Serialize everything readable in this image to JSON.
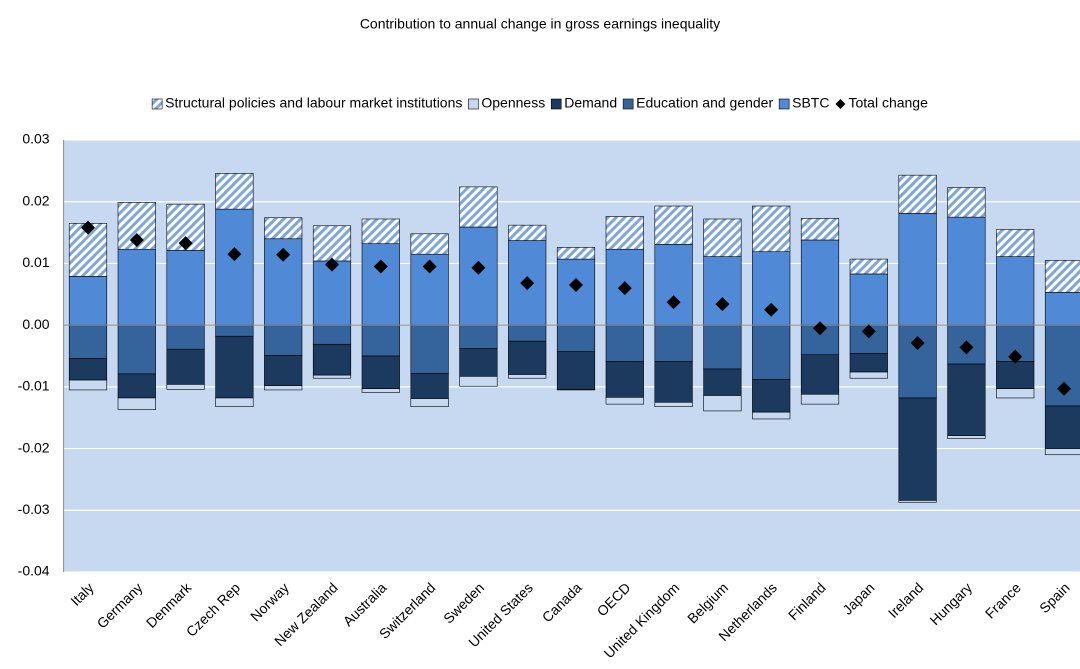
{
  "chart_data": {
    "type": "stacked_bar",
    "title": "Contribution to annual change in gross earnings inequality",
    "categories": [
      "Italy",
      "Germany",
      "Denmark",
      "Czech Rep",
      "Norway",
      "New Zealand",
      "Australia",
      "Switzerland",
      "Sweden",
      "United States",
      "Canada",
      "OECD",
      "United Kingdom",
      "Belgium",
      "Netherlands",
      "Finland",
      "Japan",
      "Ireland",
      "Hungary",
      "France",
      "Spain"
    ],
    "series": [
      {
        "name": "Structural policies and labour market institutions",
        "color": "#7fa6dc",
        "hatch": true,
        "values": [
          0.0086,
          0.0076,
          0.0075,
          0.0058,
          0.0034,
          0.0057,
          0.004,
          0.0033,
          0.0065,
          0.0025,
          0.0019,
          0.0053,
          0.0062,
          0.0061,
          0.0074,
          0.0035,
          0.0024,
          0.0062,
          0.0048,
          0.0044,
          0.0052
        ]
      },
      {
        "name": "Openness",
        "color": "#c6d9f1",
        "values": [
          -0.0016,
          -0.0019,
          -0.0008,
          -0.0014,
          -0.0007,
          -0.0005,
          -0.0006,
          -0.0013,
          -0.0016,
          -0.0006,
          -0.0001,
          -0.0011,
          -0.0007,
          -0.0025,
          -0.0011,
          -0.0016,
          -0.001,
          -0.0003,
          -0.0005,
          -0.0015,
          -0.001
        ]
      },
      {
        "name": "Demand",
        "color": "#1b3a5e",
        "values": [
          -0.0035,
          -0.0039,
          -0.0057,
          -0.01,
          -0.0049,
          -0.005,
          -0.0053,
          -0.0041,
          -0.0045,
          -0.0054,
          -0.0061,
          -0.0058,
          -0.0066,
          -0.0043,
          -0.0053,
          -0.0064,
          -0.003,
          -0.0166,
          -0.0116,
          -0.0044,
          -0.0069
        ]
      },
      {
        "name": "Education and gender",
        "color": "#35649c",
        "values": [
          -0.0054,
          -0.0079,
          -0.0039,
          -0.0018,
          -0.0049,
          -0.0031,
          -0.005,
          -0.0078,
          -0.0038,
          -0.0026,
          -0.0043,
          -0.0059,
          -0.0059,
          -0.0071,
          -0.0088,
          -0.0048,
          -0.0046,
          -0.0118,
          -0.0063,
          -0.0059,
          -0.0131
        ]
      },
      {
        "name": "SBTC",
        "color": "#508ad6",
        "values": [
          0.0079,
          0.0123,
          0.0121,
          0.0188,
          0.014,
          0.0104,
          0.0132,
          0.0115,
          0.0159,
          0.0137,
          0.0107,
          0.0123,
          0.0131,
          0.0111,
          0.0119,
          0.0138,
          0.0083,
          0.0181,
          0.0175,
          0.0111,
          0.0053
        ]
      }
    ],
    "markers": {
      "name": "Total change",
      "color": "#000000",
      "values": [
        0.0158,
        0.0138,
        0.0133,
        0.0115,
        0.0114,
        0.0098,
        0.0095,
        0.0095,
        0.0093,
        0.0068,
        0.0065,
        0.006,
        0.0037,
        0.0034,
        0.0025,
        -0.0005,
        -0.001,
        -0.0029,
        -0.0036,
        -0.0051,
        -0.0103
      ]
    },
    "ylim": [
      -0.04,
      0.03
    ],
    "yticks": [
      {
        "value": -0.04,
        "label": "-0.04"
      },
      {
        "value": -0.03,
        "label": "-0.03"
      },
      {
        "value": -0.02,
        "label": "-0.02"
      },
      {
        "value": -0.01,
        "label": "-0.01"
      },
      {
        "value": 0,
        "label": "0.00"
      },
      {
        "value": 0.01,
        "label": "0.01"
      },
      {
        "value": 0.02,
        "label": "0.02"
      },
      {
        "value": 0.03,
        "label": "0.03"
      }
    ],
    "grid": true,
    "background": "#c6d9f1",
    "legend": "top"
  }
}
